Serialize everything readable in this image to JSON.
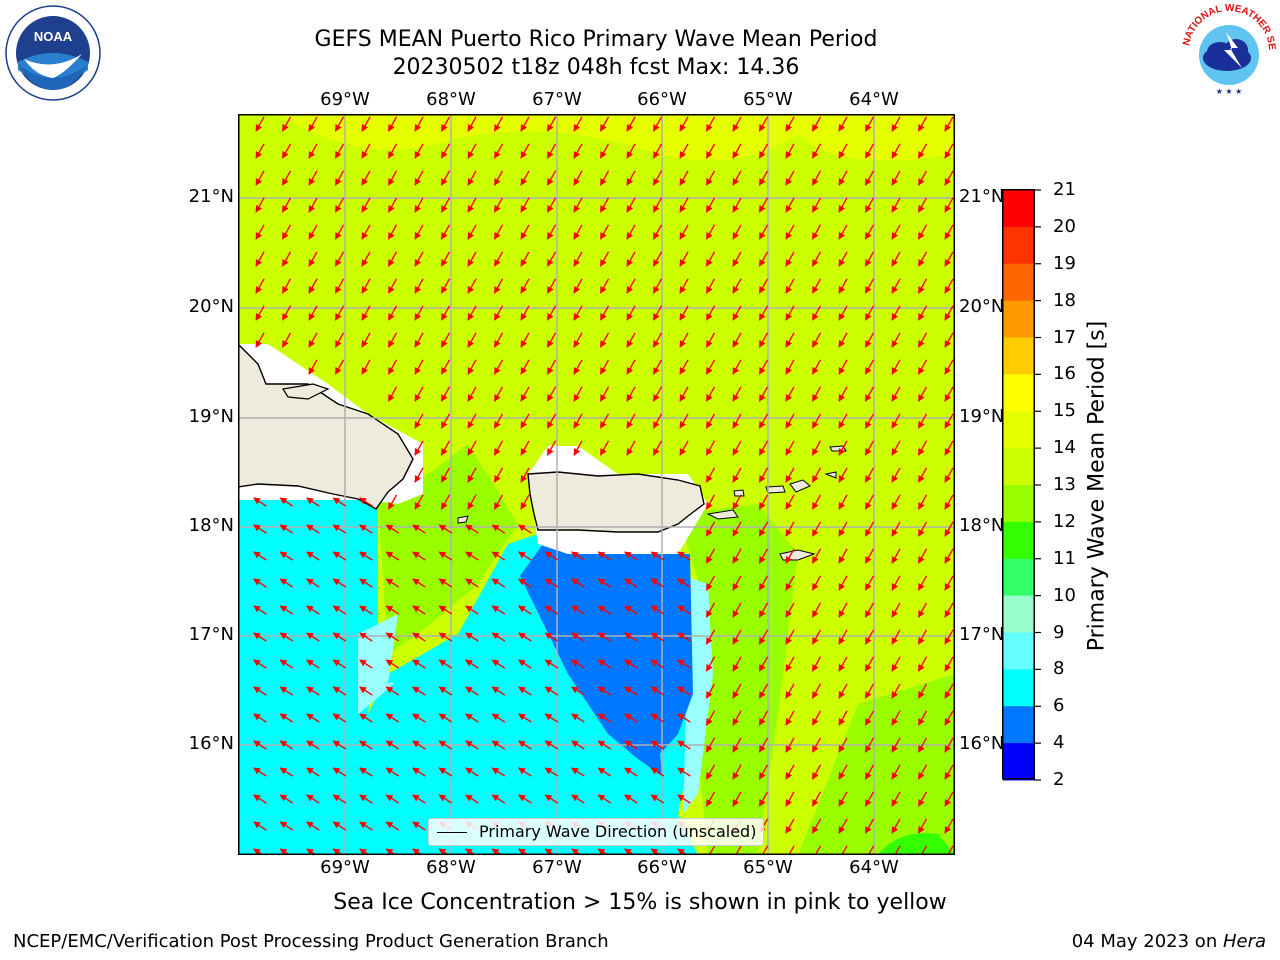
{
  "header": {
    "title_line1": "GEFS MEAN Puerto Rico Primary Wave Mean Period",
    "title_line2": "20230502 t18z 048h fcst   Max: 14.36"
  },
  "logos": {
    "left": {
      "icon": "noaa-logo",
      "text": "NOAA",
      "ring_text": "NATIONAL OCEANIC AND ATMOSPHERIC ADMINISTRATION · U.S. DEPARTMENT OF COMMERCE"
    },
    "right": {
      "icon": "nws-logo",
      "ring_text": "NATIONAL WEATHER SERVICE"
    }
  },
  "map": {
    "lon_labels": [
      "69°W",
      "68°W",
      "67°W",
      "66°W",
      "65°W",
      "64°W"
    ],
    "lat_labels": [
      "21°N",
      "20°N",
      "19°N",
      "18°N",
      "17°N",
      "16°N"
    ],
    "legend_label": "Primary Wave Direction (unscaled)",
    "arrow_color": "#ff0000",
    "land_color": "#efebdc"
  },
  "colorbar": {
    "label": "Primary Wave Mean Period [s]",
    "ticks": [
      "21",
      "20",
      "19",
      "18",
      "17",
      "16",
      "15",
      "14",
      "13",
      "12",
      "11",
      "10",
      "9",
      "8",
      "6",
      "4",
      "2"
    ],
    "colors": [
      "#ff0000",
      "#ff3300",
      "#ff6600",
      "#ff9900",
      "#ffcc00",
      "#ffff00",
      "#e6ff00",
      "#ccff00",
      "#99ff00",
      "#33ff00",
      "#33ff66",
      "#99ffcc",
      "#66ffff",
      "#00ffff",
      "#0077ff",
      "#0000ff"
    ]
  },
  "caption": "Sea Ice Concentration > 15% is shown in pink to yellow",
  "footer": {
    "left": "NCEP/EMC/Verification Post Processing Product Generation Branch",
    "date": "04 May 2023 on ",
    "machine": "Hera"
  }
}
